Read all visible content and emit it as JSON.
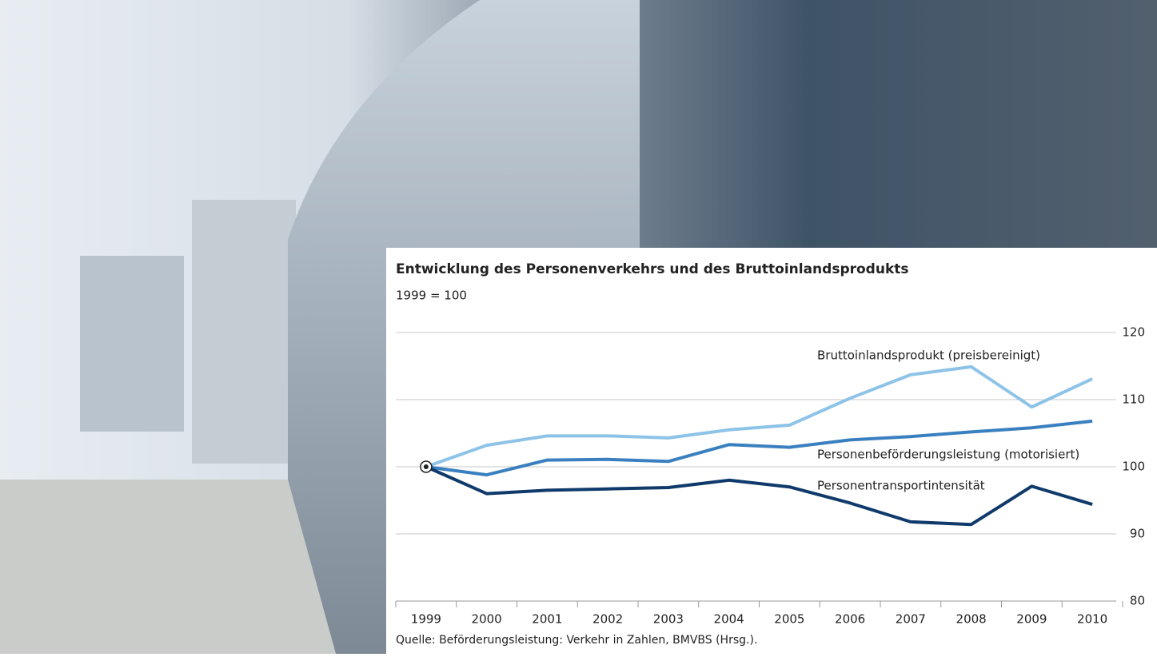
{
  "chart_data": {
    "type": "line",
    "title": "Entwicklung des Personenverkehrs und des Bruttoinlandsprodukts",
    "subtitle": "1999 = 100",
    "source": "Quelle: Beförderungsleistung: Verkehr in Zahlen, BMVBS (Hrsg.).",
    "categories": [
      "1999",
      "2000",
      "2001",
      "2002",
      "2003",
      "2004",
      "2005",
      "2006",
      "2007",
      "2008",
      "2009",
      "2010"
    ],
    "series": [
      {
        "name": "Bruttoinlandsprodukt (preisbereinigt)",
        "color": "#8ec3e8",
        "values": [
          100,
          103.2,
          104.6,
          104.6,
          104.3,
          105.5,
          106.2,
          110.2,
          113.7,
          114.9,
          108.9,
          113.1
        ]
      },
      {
        "name": "Personenbeförderungsleistung (motorisiert)",
        "color": "#3a80c0",
        "values": [
          100,
          98.8,
          101.0,
          101.1,
          100.8,
          103.3,
          102.9,
          104.0,
          104.5,
          105.2,
          105.8,
          106.8
        ]
      },
      {
        "name": "Personentransportintensität",
        "color": "#0f3a6b",
        "values": [
          100,
          96.0,
          96.5,
          96.7,
          96.9,
          98.0,
          97.0,
          94.6,
          91.8,
          91.4,
          97.1,
          94.4
        ]
      }
    ],
    "ylim": [
      80,
      120
    ],
    "yticks": [
      80,
      90,
      100,
      110,
      120
    ],
    "grid": true
  }
}
